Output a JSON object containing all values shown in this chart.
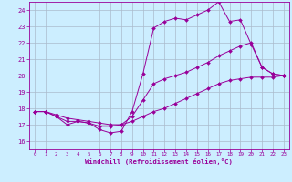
{
  "title": "",
  "xlabel": "Windchill (Refroidissement éolien,°C)",
  "ylabel": "",
  "xlim": [
    -0.5,
    23.5
  ],
  "ylim": [
    15.5,
    24.5
  ],
  "yticks": [
    16,
    17,
    18,
    19,
    20,
    21,
    22,
    23,
    24
  ],
  "xticks": [
    0,
    1,
    2,
    3,
    4,
    5,
    6,
    7,
    8,
    9,
    10,
    11,
    12,
    13,
    14,
    15,
    16,
    17,
    18,
    19,
    20,
    21,
    22,
    23
  ],
  "bg_color": "#cceeff",
  "grid_color": "#aabbcc",
  "line_color": "#990099",
  "line1_x": [
    0,
    1,
    2,
    3,
    4,
    5,
    6,
    7,
    8,
    9,
    10,
    11,
    12,
    13,
    14,
    15,
    16,
    17,
    18,
    19,
    20,
    21,
    22,
    23
  ],
  "line1_y": [
    17.8,
    17.8,
    17.5,
    17.0,
    17.2,
    17.1,
    16.7,
    16.5,
    16.6,
    17.8,
    20.1,
    22.9,
    23.3,
    23.5,
    23.4,
    23.7,
    24.0,
    24.5,
    23.3,
    23.4,
    21.9,
    20.5,
    20.1,
    20.0
  ],
  "line2_x": [
    0,
    1,
    2,
    3,
    4,
    5,
    6,
    7,
    8,
    9,
    10,
    11,
    12,
    13,
    14,
    15,
    16,
    17,
    18,
    19,
    20,
    21,
    22,
    23
  ],
  "line2_y": [
    17.8,
    17.8,
    17.5,
    17.2,
    17.2,
    17.1,
    16.9,
    16.9,
    17.0,
    17.5,
    18.5,
    19.5,
    19.8,
    20.0,
    20.2,
    20.5,
    20.8,
    21.2,
    21.5,
    21.8,
    22.0,
    20.5,
    20.1,
    20.0
  ],
  "line3_x": [
    0,
    1,
    2,
    3,
    4,
    5,
    6,
    7,
    8,
    9,
    10,
    11,
    12,
    13,
    14,
    15,
    16,
    17,
    18,
    19,
    20,
    21,
    22,
    23
  ],
  "line3_y": [
    17.8,
    17.8,
    17.6,
    17.4,
    17.3,
    17.2,
    17.1,
    17.0,
    17.0,
    17.2,
    17.5,
    17.8,
    18.0,
    18.3,
    18.6,
    18.9,
    19.2,
    19.5,
    19.7,
    19.8,
    19.9,
    19.9,
    19.9,
    20.0
  ]
}
